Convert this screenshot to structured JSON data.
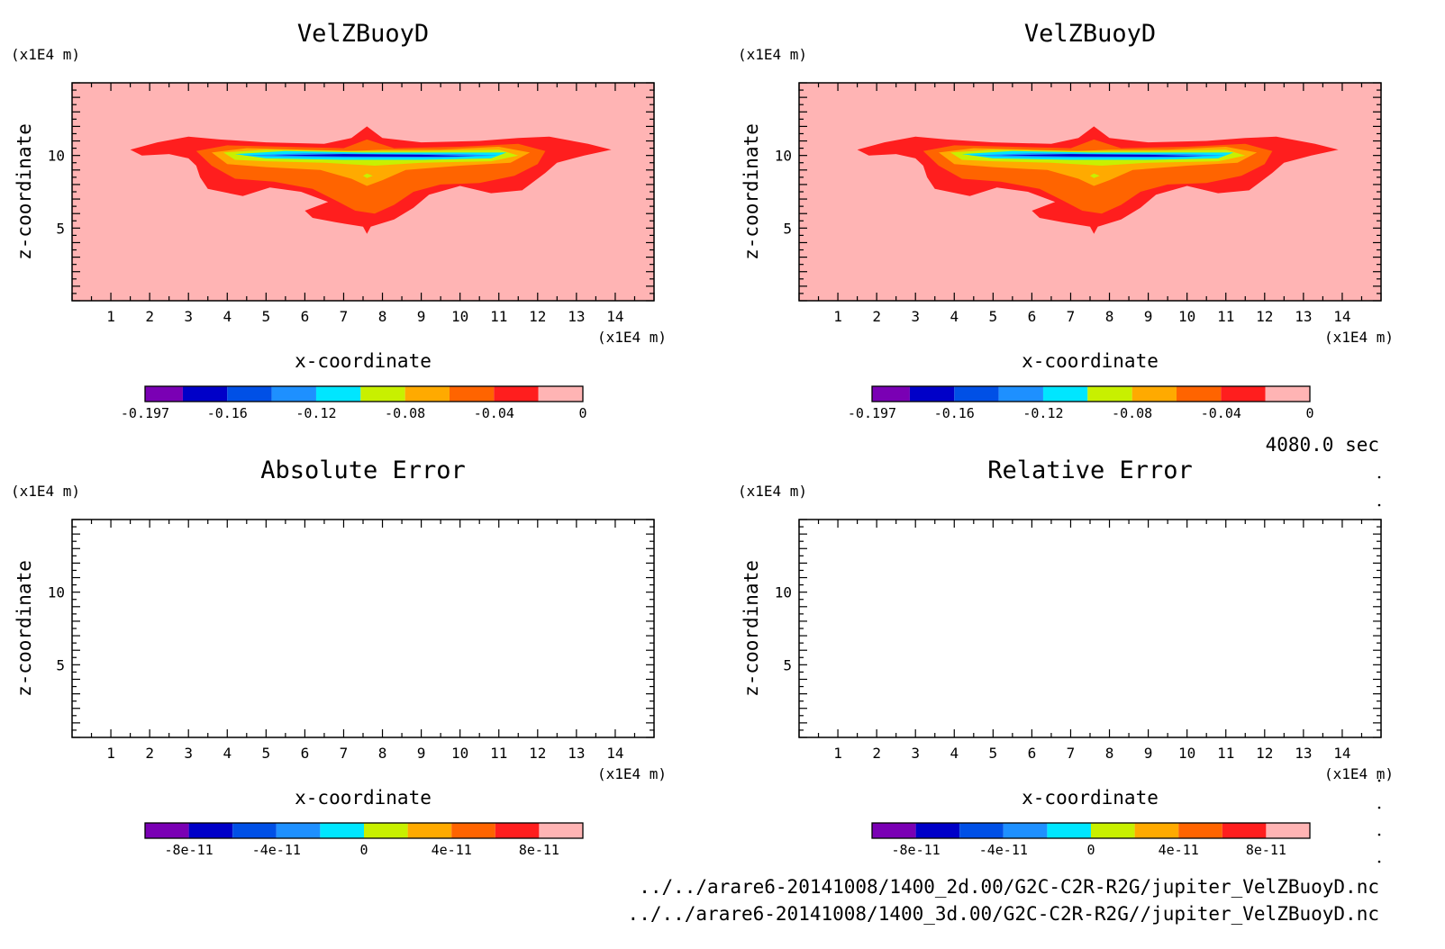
{
  "time_label": "4080.0 sec",
  "file_lines": [
    "../../arare6-20141008/1400_2d.00/G2C-C2R-R2G/jupiter_VelZBuoyD.nc",
    "../../arare6-20141008/1400_3d.00/G2C-C2R-R2G//jupiter_VelZBuoyD.nc"
  ],
  "chart_data": [
    {
      "type": "heatmap",
      "title": "VelZBuoyD",
      "xlabel": "x-coordinate",
      "ylabel": "z-coordinate",
      "x_unit": "(x1E4 m)",
      "y_unit": "(x1E4 m)",
      "xlim": [
        0,
        15
      ],
      "ylim": [
        0,
        15
      ],
      "x_ticks": [
        "1",
        "2",
        "3",
        "4",
        "5",
        "6",
        "7",
        "8",
        "9",
        "10",
        "11",
        "12",
        "13",
        "14"
      ],
      "y_ticks": [
        "5",
        "10"
      ],
      "colorbar": {
        "levels": [
          -0.197,
          -0.18,
          -0.16,
          -0.14,
          -0.12,
          -0.1,
          -0.08,
          -0.06,
          -0.04,
          -0.02,
          0
        ],
        "tick_labels": [
          "-0.197",
          "-0.16",
          "-0.12",
          "-0.08",
          "-0.04",
          "0"
        ],
        "colors": [
          "#7a00b4",
          "#0000c8",
          "#0050e6",
          "#1e90ff",
          "#00e6ff",
          "#c8f000",
          "#ffaa00",
          "#ff6400",
          "#ff1e1e",
          "#ffb4b4"
        ]
      },
      "field": "negative buoyancy acceleration concentrated near z=10, x=3-12, with a downward plume centered near x=7.6 reaching z~5; minimum about -0.197 near z=10"
    },
    {
      "type": "heatmap",
      "title": "VelZBuoyD",
      "xlabel": "x-coordinate",
      "ylabel": "z-coordinate",
      "x_unit": "(x1E4 m)",
      "y_unit": "(x1E4 m)",
      "xlim": [
        0,
        15
      ],
      "ylim": [
        0,
        15
      ],
      "x_ticks": [
        "1",
        "2",
        "3",
        "4",
        "5",
        "6",
        "7",
        "8",
        "9",
        "10",
        "11",
        "12",
        "13",
        "14"
      ],
      "y_ticks": [
        "5",
        "10"
      ],
      "colorbar": {
        "levels": [
          -0.197,
          -0.18,
          -0.16,
          -0.14,
          -0.12,
          -0.1,
          -0.08,
          -0.06,
          -0.04,
          -0.02,
          0
        ],
        "tick_labels": [
          "-0.197",
          "-0.16",
          "-0.12",
          "-0.08",
          "-0.04",
          "0"
        ],
        "colors": [
          "#7a00b4",
          "#0000c8",
          "#0050e6",
          "#1e90ff",
          "#00e6ff",
          "#c8f000",
          "#ffaa00",
          "#ff6400",
          "#ff1e1e",
          "#ffb4b4"
        ]
      },
      "field": "same as left panel"
    },
    {
      "type": "heatmap",
      "title": "Absolute Error",
      "xlabel": "x-coordinate",
      "ylabel": "z-coordinate",
      "x_unit": "(x1E4 m)",
      "y_unit": "(x1E4 m)",
      "xlim": [
        0,
        15
      ],
      "ylim": [
        0,
        15
      ],
      "x_ticks": [
        "1",
        "2",
        "3",
        "4",
        "5",
        "6",
        "7",
        "8",
        "9",
        "10",
        "11",
        "12",
        "13",
        "14"
      ],
      "y_ticks": [
        "5",
        "10"
      ],
      "colorbar": {
        "levels": [
          -1e-10,
          -8e-11,
          -6e-11,
          -4e-11,
          -2e-11,
          0,
          2e-11,
          4e-11,
          6e-11,
          8e-11,
          1e-10
        ],
        "tick_labels": [
          "-8e-11",
          "-4e-11",
          "0",
          "4e-11",
          "8e-11"
        ],
        "colors": [
          "#7a00b4",
          "#0000c8",
          "#0050e6",
          "#1e90ff",
          "#00e6ff",
          "#c8f000",
          "#ffaa00",
          "#ff6400",
          "#ff1e1e",
          "#ffb4b4"
        ]
      },
      "field": "empty"
    },
    {
      "type": "heatmap",
      "title": "Relative Error",
      "xlabel": "x-coordinate",
      "ylabel": "z-coordinate",
      "x_unit": "(x1E4 m)",
      "y_unit": "(x1E4 m)",
      "xlim": [
        0,
        15
      ],
      "ylim": [
        0,
        15
      ],
      "x_ticks": [
        "1",
        "2",
        "3",
        "4",
        "5",
        "6",
        "7",
        "8",
        "9",
        "10",
        "11",
        "12",
        "13",
        "14"
      ],
      "y_ticks": [
        "5",
        "10"
      ],
      "colorbar": {
        "levels": [
          -1e-10,
          -8e-11,
          -6e-11,
          -4e-11,
          -2e-11,
          0,
          2e-11,
          4e-11,
          6e-11,
          8e-11,
          1e-10
        ],
        "tick_labels": [
          "-8e-11",
          "-4e-11",
          "0",
          "4e-11",
          "8e-11"
        ],
        "colors": [
          "#7a00b4",
          "#0000c8",
          "#0050e6",
          "#1e90ff",
          "#00e6ff",
          "#c8f000",
          "#ffaa00",
          "#ff6400",
          "#ff1e1e",
          "#ffb4b4"
        ]
      },
      "field": "empty"
    }
  ]
}
